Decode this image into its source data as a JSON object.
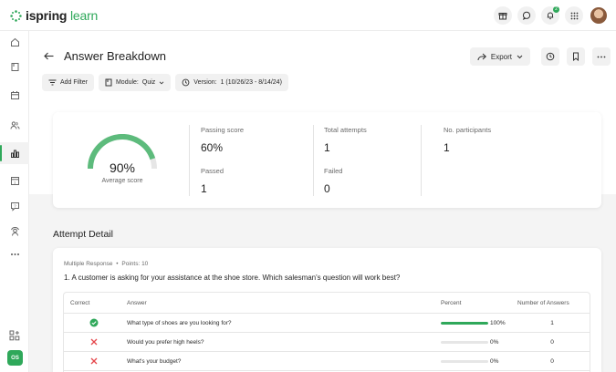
{
  "brand": {
    "name_part1": "ispring",
    "name_part2": "learn",
    "accent": "#2fa85a"
  },
  "topbar": {
    "icons": [
      "gift-icon",
      "chat-icon",
      "bell-icon",
      "apps-grid-icon"
    ],
    "notification_count": "2"
  },
  "sidebar": {
    "items": [
      "home-icon",
      "courses-icon",
      "calendar-icon",
      "users-icon",
      "reports-icon",
      "assignments-icon",
      "question-icon",
      "people-search-icon",
      "more-icon"
    ],
    "active_item": "reports-icon",
    "bottom_item": "add-widget-icon",
    "user_initials": "OS"
  },
  "header": {
    "title": "Answer Breakdown",
    "export_label": "Export"
  },
  "filters": {
    "add_filter": "Add Filter",
    "module_label": "Module:",
    "module_value": "Quiz",
    "version_label": "Version:",
    "version_value": "1 (10/26/23 - 8/14/24)"
  },
  "summary": {
    "average_score_pct": "90%",
    "average_score_fraction": 0.9,
    "average_score_label": "Average score",
    "passing_score_label": "Passing score",
    "passing_score_value": "60%",
    "passed_label": "Passed",
    "passed_value": "1",
    "total_attempts_label": "Total attempts",
    "total_attempts_value": "1",
    "failed_label": "Failed",
    "failed_value": "0",
    "participants_label": "No. participants",
    "participants_value": "1"
  },
  "attempt_detail": {
    "section_title": "Attempt Detail",
    "question_type": "Multiple Response",
    "bullet": "•",
    "points_text": "Points: 10",
    "question_text": "1. A customer is asking for your assistance at the shoe store. Which salesman's question will work best?",
    "columns": {
      "correct": "Correct",
      "answer": "Answer",
      "percent": "Percent",
      "count": "Number of Answers"
    },
    "rows": [
      {
        "correct": true,
        "answer": "What type of shoes are you looking for?",
        "percent_text": "100%",
        "percent": 100,
        "count": "1"
      },
      {
        "correct": false,
        "answer": "Would you prefer high heels?",
        "percent_text": "0%",
        "percent": 0,
        "count": "0"
      },
      {
        "correct": false,
        "answer": "What's your budget?",
        "percent_text": "0%",
        "percent": 0,
        "count": "0"
      }
    ]
  }
}
